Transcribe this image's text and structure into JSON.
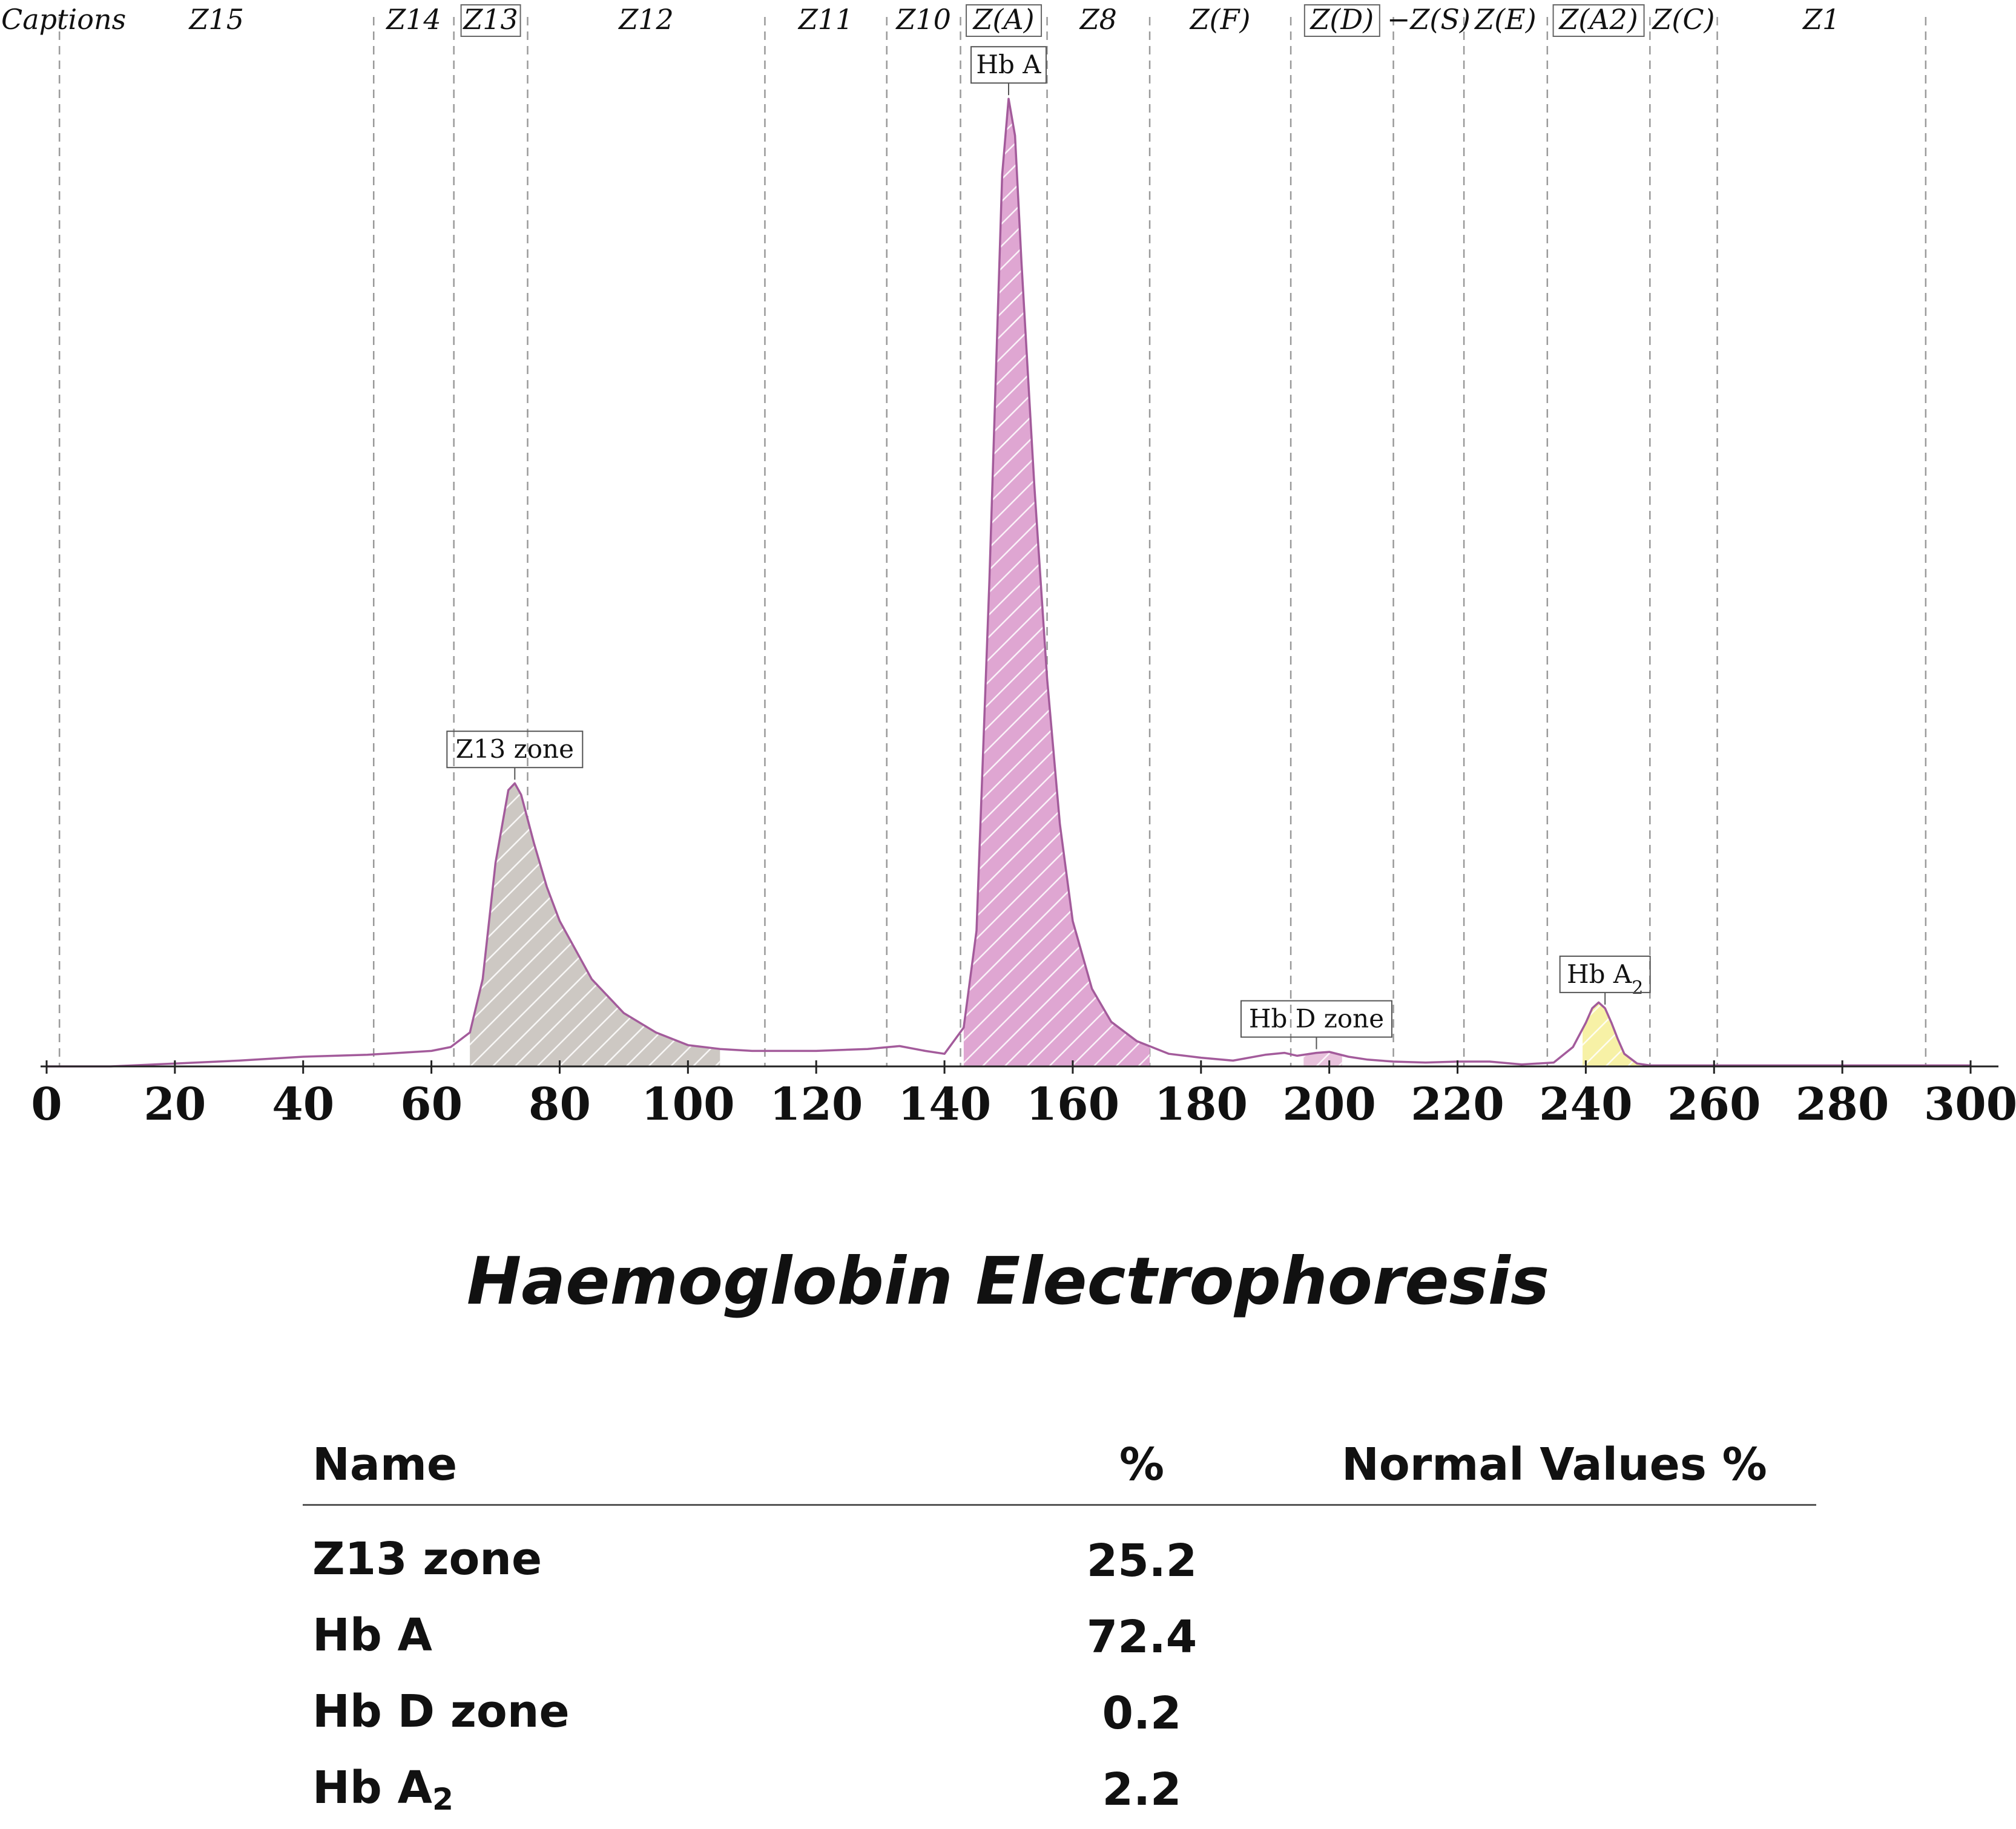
{
  "chart_data": {
    "type": "area",
    "xlim": [
      0,
      300
    ],
    "ylim": [
      0,
      100
    ],
    "x_ticks": [
      "0",
      "20",
      "40",
      "60",
      "80",
      "100",
      "120",
      "140",
      "160",
      "180",
      "200",
      "220",
      "240",
      "260",
      "280",
      "300"
    ],
    "grid": "dashed vertical zone boundaries",
    "zone_boundaries": [
      2,
      51,
      63.5,
      75,
      112,
      131,
      142.5,
      156,
      172,
      194,
      210,
      221,
      234,
      250,
      260.5,
      293
    ],
    "zones": [
      {
        "label": "Captions",
        "boxed": false
      },
      {
        "label": "Z15",
        "boxed": false
      },
      {
        "label": "Z14",
        "boxed": false
      },
      {
        "label": "Z13",
        "boxed": true
      },
      {
        "label": "Z12",
        "boxed": false
      },
      {
        "label": "Z11",
        "boxed": false
      },
      {
        "label": "Z10",
        "boxed": false
      },
      {
        "label": "Z(A)",
        "boxed": true
      },
      {
        "label": "Z8",
        "boxed": false
      },
      {
        "label": "Z(F)",
        "boxed": false
      },
      {
        "label": "Z(D)",
        "boxed": true
      },
      {
        "label": "−Z(S)",
        "boxed": false
      },
      {
        "label": "Z(E)",
        "boxed": false
      },
      {
        "label": "Z(A2)",
        "boxed": true
      },
      {
        "label": "Z(C)",
        "boxed": false
      },
      {
        "label": "Z1",
        "boxed": false
      }
    ],
    "trace": {
      "line_color": "#a35b9b",
      "x": [
        0,
        10,
        20,
        30,
        40,
        50,
        55,
        60,
        63,
        66,
        68,
        70,
        72,
        73,
        74,
        76,
        78,
        80,
        85,
        90,
        95,
        100,
        105,
        110,
        120,
        128,
        133,
        137,
        140,
        143,
        145,
        147,
        149,
        150,
        151,
        152,
        154,
        156,
        158,
        160,
        163,
        166,
        170,
        175,
        180,
        185,
        190,
        193,
        195,
        198,
        200,
        203,
        206,
        210,
        215,
        220,
        225,
        230,
        235,
        238,
        240,
        241,
        242,
        243,
        244,
        245,
        246,
        248,
        250,
        255,
        260,
        270,
        280,
        290,
        300
      ],
      "y": [
        0,
        0,
        0.3,
        0.6,
        1,
        1.2,
        1.4,
        1.6,
        2,
        3.5,
        9,
        21,
        28.5,
        29.2,
        28,
        23,
        18.5,
        15,
        9,
        5.5,
        3.5,
        2.2,
        1.8,
        1.6,
        1.6,
        1.8,
        2.1,
        1.6,
        1.3,
        4,
        14,
        50,
        92,
        99.8,
        96,
        83,
        60,
        40,
        25,
        15,
        8,
        4.6,
        2.6,
        1.3,
        0.9,
        0.6,
        1.2,
        1.4,
        1.1,
        1.4,
        1.5,
        1,
        0.7,
        0.5,
        0.4,
        0.5,
        0.5,
        0.2,
        0.4,
        2,
        4.5,
        6,
        6.6,
        6,
        4.5,
        2.8,
        1.3,
        0.3,
        0.1,
        0.1,
        0.1,
        0.1,
        0.1,
        0.1,
        0.1
      ]
    },
    "peaks": [
      {
        "name": "Z13 zone",
        "label": "Z13 zone",
        "x_range": [
          66,
          105
        ],
        "peak_x": 73,
        "fill": "#cdc8c3",
        "stroke": "#9a918a"
      },
      {
        "name": "Hb A",
        "label": "Hb A",
        "x_range": [
          143,
          172
        ],
        "peak_x": 150,
        "fill": "#dfa6d2",
        "stroke": "#b760a8"
      },
      {
        "name": "Hb D zone",
        "label": "Hb D zone",
        "x_range": [
          196,
          202
        ],
        "peak_x": 198,
        "fill": "#e8c2dc",
        "stroke": "#b760a8"
      },
      {
        "name": "Hb A2",
        "label": "Hb A",
        "label_sub": "2",
        "x_range": [
          239.5,
          248.5
        ],
        "peak_x": 243,
        "fill": "#f7f1a6",
        "stroke": "#c9bf5a"
      }
    ]
  },
  "report": {
    "title": "Haemoglobin Electrophoresis",
    "table": {
      "headers": {
        "name": "Name",
        "percent": "%",
        "normal": "Normal Values %"
      },
      "rows": [
        {
          "name": "Z13 zone",
          "name_sub": "",
          "percent": "25.2",
          "normal": ""
        },
        {
          "name": "Hb A",
          "name_sub": "",
          "percent": "72.4",
          "normal": ""
        },
        {
          "name": "Hb D zone",
          "name_sub": "",
          "percent": "0.2",
          "normal": ""
        },
        {
          "name": "Hb A",
          "name_sub": "2",
          "percent": "2.2",
          "normal": ""
        }
      ]
    }
  }
}
